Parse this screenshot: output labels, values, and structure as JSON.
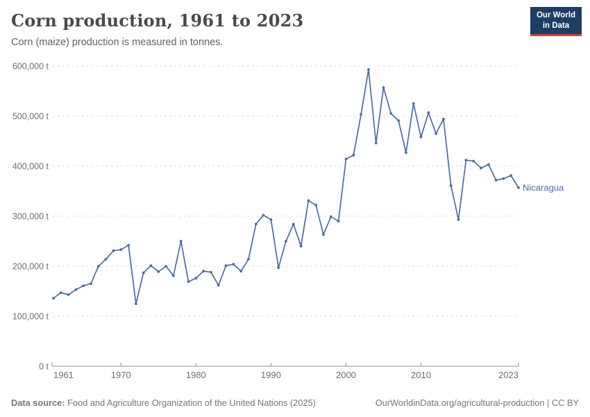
{
  "header": {
    "title": "Corn production, 1961 to 2023",
    "subtitle": "Corn (maize) production is measured in tonnes.",
    "logo": {
      "line1": "Our World",
      "line2": "in Data",
      "bg_color": "#1d3d63",
      "accent_color": "#d93a34"
    }
  },
  "chart_data": {
    "type": "line",
    "title": "Corn production, 1961 to 2023",
    "unit": "t",
    "xlim": [
      1961,
      2023
    ],
    "ylim": [
      0,
      600000
    ],
    "x_ticks": [
      1961,
      1970,
      1980,
      1990,
      2000,
      2010,
      2023
    ],
    "y_ticks": [
      0,
      100000,
      200000,
      300000,
      400000,
      500000,
      600000
    ],
    "grid": "horizontal-dashed",
    "legend_position": "end-of-line-label",
    "colors": {
      "line": "#4c6ba5",
      "grid": "#d6d6d6",
      "axis": "#8f8f8f",
      "tick_label": "#6e6e6e"
    },
    "series": [
      {
        "name": "Nicaragua",
        "years": [
          1961,
          1962,
          1963,
          1964,
          1965,
          1966,
          1967,
          1968,
          1969,
          1970,
          1971,
          1972,
          1973,
          1974,
          1975,
          1976,
          1977,
          1978,
          1979,
          1980,
          1981,
          1982,
          1983,
          1984,
          1985,
          1986,
          1987,
          1988,
          1989,
          1990,
          1991,
          1992,
          1993,
          1994,
          1995,
          1996,
          1997,
          1998,
          1999,
          2000,
          2001,
          2002,
          2003,
          2004,
          2005,
          2006,
          2007,
          2008,
          2009,
          2010,
          2011,
          2012,
          2013,
          2014,
          2015,
          2016,
          2017,
          2018,
          2019,
          2020,
          2021,
          2022,
          2023
        ],
        "values": [
          136000,
          147000,
          143000,
          153000,
          161000,
          165000,
          200000,
          214000,
          231000,
          233000,
          242000,
          125000,
          187000,
          201000,
          189000,
          200000,
          181000,
          250000,
          169000,
          176000,
          190000,
          188000,
          162000,
          201000,
          204000,
          190000,
          214000,
          284000,
          302000,
          293000,
          197000,
          250000,
          284000,
          240000,
          331000,
          322000,
          263000,
          299000,
          290000,
          414000,
          422000,
          503000,
          593000,
          446000,
          557000,
          505000,
          491000,
          427000,
          525000,
          458000,
          507000,
          465000,
          494000,
          361000,
          293000,
          412000,
          410000,
          396000,
          403000,
          372000,
          375000,
          381000,
          357000
        ]
      }
    ]
  },
  "footer": {
    "source_label": "Data source:",
    "source_text": " Food and Agriculture Organization of the United Nations (2025)",
    "link_text": "OurWorldinData.org/agricultural-production | CC BY"
  }
}
